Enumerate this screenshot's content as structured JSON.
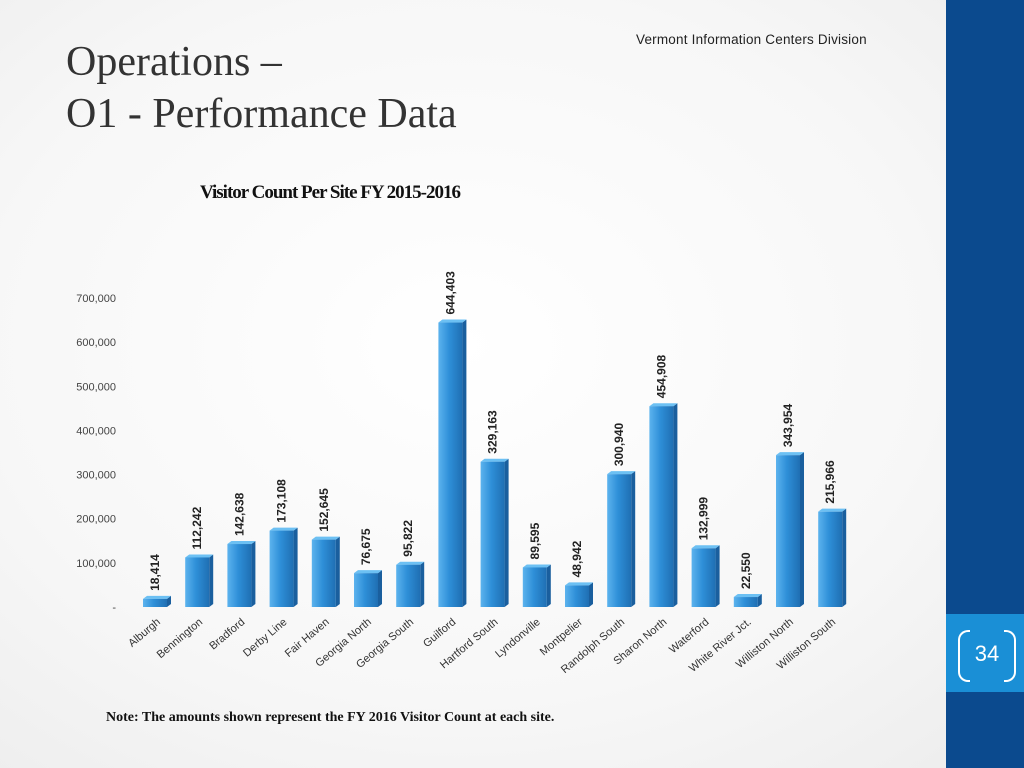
{
  "header": {
    "org": "Vermont Information Centers Division"
  },
  "slide": {
    "title_line1": "Operations –",
    "title_line2": "O1 - Performance Data",
    "note": "Note:  The amounts shown represent the FY 2016 Visitor Count at each site.",
    "page_number": "34"
  },
  "colors": {
    "panel": "#0b4a8e",
    "page_tab": "#1a8fd6",
    "bar": "#2e8fd8"
  },
  "chart_data": {
    "type": "bar",
    "title": "Visitor Count Per Site FY 2015-2016",
    "categories": [
      "Alburgh",
      "Bennington",
      "Bradford",
      "Derby Line",
      "Fair Haven",
      "Georgia North",
      "Georgia South",
      "Guilford",
      "Hartford South",
      "Lyndonville",
      "Montpelier",
      "Randolph South",
      "Sharon North",
      "Waterford",
      "White River Jct.",
      "Williston North",
      "Williston South"
    ],
    "values": [
      18414,
      112242,
      142638,
      173108,
      152645,
      76675,
      95822,
      644403,
      329163,
      89595,
      48942,
      300940,
      454908,
      132999,
      22550,
      343954,
      215966
    ],
    "data_labels": [
      "18,414",
      "112,242",
      "142,638",
      "173,108",
      "152,645",
      "76,675",
      "95,822",
      "644,403",
      "329,163",
      "89,595",
      "48,942",
      "300,940",
      "454,908",
      "132,999",
      "22,550",
      "343,954",
      "215,966"
    ],
    "y_ticks": [
      "-",
      "100,000",
      "200,000",
      "300,000",
      "400,000",
      "500,000",
      "600,000",
      "700,000"
    ],
    "ylim": [
      0,
      700000
    ],
    "grid": false,
    "legend": "none"
  }
}
